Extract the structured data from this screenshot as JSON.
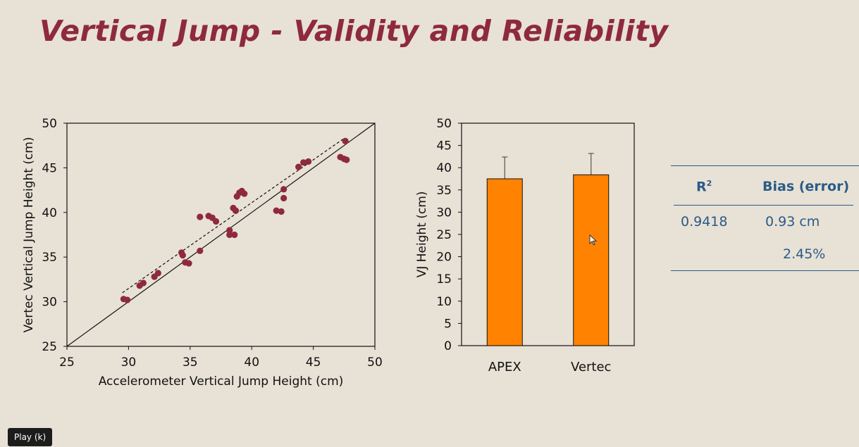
{
  "slide": {
    "title": "Vertical Jump - Validity and Reliability"
  },
  "chart_data": [
    {
      "type": "scatter",
      "xlabel": "Accelerometer Vertical Jump Height (cm)",
      "ylabel": "Vertec Vertical Jump Height (cm)",
      "xlim": [
        25,
        50
      ],
      "ylim": [
        25,
        50
      ],
      "xticks": [
        "25",
        "30",
        "35",
        "40",
        "45",
        "50"
      ],
      "yticks": [
        "25",
        "30",
        "35",
        "40",
        "45",
        "50"
      ],
      "identity_line": true,
      "fit_line": {
        "x": [
          29.5,
          47.5
        ],
        "y": [
          31.0,
          48.3
        ]
      },
      "marker_color": "#8e2a3c",
      "points": [
        [
          29.6,
          30.3
        ],
        [
          29.9,
          30.2
        ],
        [
          30.9,
          31.8
        ],
        [
          31.2,
          32.1
        ],
        [
          32.1,
          32.8
        ],
        [
          32.4,
          33.2
        ],
        [
          34.3,
          35.5
        ],
        [
          34.4,
          35.2
        ],
        [
          34.6,
          34.4
        ],
        [
          34.9,
          34.3
        ],
        [
          35.8,
          35.7
        ],
        [
          35.8,
          39.5
        ],
        [
          36.5,
          39.6
        ],
        [
          36.8,
          39.4
        ],
        [
          37.1,
          39.0
        ],
        [
          38.2,
          38.0
        ],
        [
          38.2,
          37.5
        ],
        [
          38.6,
          37.5
        ],
        [
          38.5,
          40.5
        ],
        [
          38.7,
          40.2
        ],
        [
          38.8,
          41.8
        ],
        [
          39.0,
          42.2
        ],
        [
          39.2,
          42.4
        ],
        [
          39.4,
          42.1
        ],
        [
          38.7,
          40.2
        ],
        [
          42.0,
          40.2
        ],
        [
          42.4,
          40.1
        ],
        [
          42.6,
          41.6
        ],
        [
          42.6,
          42.6
        ],
        [
          43.8,
          45.1
        ],
        [
          44.2,
          45.6
        ],
        [
          44.6,
          45.7
        ],
        [
          47.2,
          46.2
        ],
        [
          47.5,
          46.0
        ],
        [
          47.7,
          45.9
        ],
        [
          47.6,
          48.0
        ]
      ]
    },
    {
      "type": "bar",
      "categories": [
        "APEX",
        "Vertec"
      ],
      "values": [
        37.5,
        38.4
      ],
      "errors": [
        4.9,
        4.8
      ],
      "ylabel": "VJ Height (cm)",
      "ylim": [
        0,
        50
      ],
      "yticks": [
        "0",
        "5",
        "10",
        "15",
        "20",
        "25",
        "30",
        "35",
        "40",
        "45",
        "50"
      ],
      "bar_color": "#ff8200"
    }
  ],
  "stats_table": {
    "header_r2": "R",
    "header_r2_sup": "2",
    "header_bias": "Bias (error)",
    "r2_value": "0.9418",
    "bias_value": "0.93 cm",
    "bias_pct": "2.45%"
  },
  "player": {
    "play_tooltip": "Play (k)"
  }
}
